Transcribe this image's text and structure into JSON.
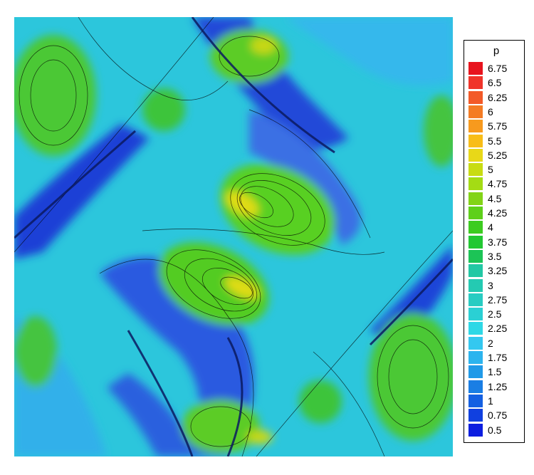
{
  "chart_data": {
    "type": "heatmap",
    "variable": "p",
    "colorbar": {
      "title": "p",
      "levels": [
        "6.75",
        "6.5",
        "6.25",
        "6",
        "5.75",
        "5.5",
        "5.25",
        "5",
        "4.75",
        "4.5",
        "4.25",
        "4",
        "3.75",
        "3.5",
        "3.25",
        "3",
        "2.75",
        "2.5",
        "2.25",
        "2",
        "1.75",
        "1.5",
        "1.25",
        "1",
        "0.75",
        "0.5"
      ],
      "colors": [
        "#e8141e",
        "#f0342a",
        "#f35a28",
        "#f47c24",
        "#f79a1e",
        "#f8bd18",
        "#e8d818",
        "#c8dc12",
        "#a4dc14",
        "#82d416",
        "#5ed01a",
        "#3ccc20",
        "#22c832",
        "#1cc456",
        "#22c8a4",
        "#24cab2",
        "#28ccc2",
        "#2ad0d4",
        "#2ed8e6",
        "#34c8f0",
        "#2cb4ee",
        "#209ae8",
        "#1a7ee4",
        "#1460e2",
        "#1040e0",
        "#0c1ee0"
      ]
    },
    "legend_position": "right",
    "colors": {
      "background": "#28c8e0",
      "low": "#1e3ce0",
      "high": "#3ccc20",
      "peak": "#f0dc14"
    }
  }
}
